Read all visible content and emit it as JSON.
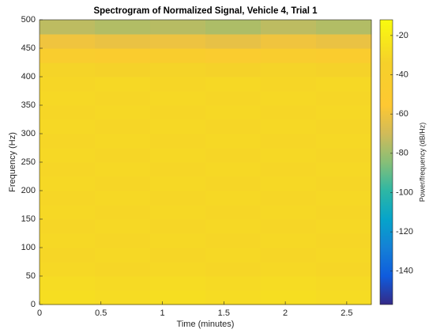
{
  "chart_data": {
    "type": "heatmap",
    "title": "Spectrogram of Normalized Signal, Vehicle 4, Trial 1",
    "x_label": "Time (minutes)",
    "y_label": "Frequency (Hz)",
    "colorbar_label": "Power/frequency (dB/Hz)",
    "colormap": "parula",
    "x_bins": [
      0,
      0.45,
      0.9,
      1.35,
      1.8,
      2.25,
      2.7
    ],
    "y_bins": [
      0,
      25,
      50,
      75,
      100,
      125,
      150,
      175,
      200,
      225,
      250,
      275,
      300,
      325,
      350,
      375,
      400,
      425,
      450,
      475,
      500
    ],
    "z": [
      [
        -27,
        -28,
        -27,
        -28,
        -27,
        -28
      ],
      [
        -28,
        -29,
        -28,
        -29,
        -28,
        -29
      ],
      [
        -30,
        -31,
        -30,
        -31,
        -30,
        -31
      ],
      [
        -31,
        -30,
        -31,
        -30,
        -31,
        -30
      ],
      [
        -30,
        -31,
        -30,
        -31,
        -30,
        -31
      ],
      [
        -31,
        -30,
        -31,
        -30,
        -31,
        -30
      ],
      [
        -30,
        -31,
        -30,
        -31,
        -30,
        -31
      ],
      [
        -31,
        -30,
        -31,
        -30,
        -31,
        -30
      ],
      [
        -30,
        -31,
        -30,
        -31,
        -30,
        -31
      ],
      [
        -31,
        -30,
        -31,
        -30,
        -31,
        -30
      ],
      [
        -30,
        -31,
        -30,
        -31,
        -30,
        -31
      ],
      [
        -31,
        -30,
        -31,
        -30,
        -31,
        -30
      ],
      [
        -30,
        -31,
        -30,
        -31,
        -30,
        -31
      ],
      [
        -31,
        -30,
        -31,
        -30,
        -31,
        -30
      ],
      [
        -30,
        -31,
        -30,
        -31,
        -30,
        -31
      ],
      [
        -31,
        -30,
        -31,
        -30,
        -31,
        -30
      ],
      [
        -32,
        -33,
        -32,
        -33,
        -32,
        -33
      ],
      [
        -44,
        -45,
        -43,
        -46,
        -44,
        -45
      ],
      [
        -60,
        -62,
        -61,
        -63,
        -60,
        -62
      ],
      [
        -74,
        -76,
        -75,
        -77,
        -74,
        -76
      ]
    ],
    "xlim": [
      0,
      2.7
    ],
    "ylim": [
      0,
      500
    ],
    "clim": [
      -157,
      -12
    ],
    "xticks": [
      0,
      0.5,
      1,
      1.5,
      2,
      2.5
    ],
    "yticks": [
      0,
      50,
      100,
      150,
      200,
      250,
      300,
      350,
      400,
      450,
      500
    ],
    "cticks": [
      -20,
      -40,
      -60,
      -80,
      -100,
      -120,
      -140
    ]
  }
}
